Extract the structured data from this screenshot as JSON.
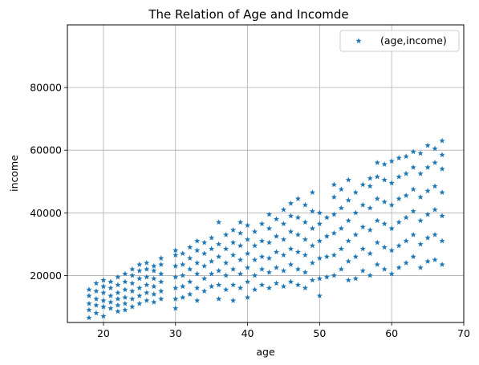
{
  "chart_data": {
    "type": "scatter",
    "title": "The Relation of Age and Incomde",
    "xlabel": "age",
    "ylabel": "income",
    "xlim": [
      15,
      70
    ],
    "ylim": [
      5000,
      100000
    ],
    "xticks": [
      20,
      30,
      40,
      50,
      60,
      70
    ],
    "yticks": [
      20000,
      40000,
      60000,
      80000
    ],
    "grid": true,
    "legend_position": "top-right",
    "marker": "star",
    "color": "#1f77b4",
    "series": [
      {
        "name": "(age,income)",
        "points": [
          [
            18,
            6500
          ],
          [
            18,
            9000
          ],
          [
            18,
            11000
          ],
          [
            18,
            13500
          ],
          [
            18,
            15500
          ],
          [
            19,
            8000
          ],
          [
            19,
            10500
          ],
          [
            19,
            12500
          ],
          [
            19,
            15000
          ],
          [
            19,
            17500
          ],
          [
            20,
            7000
          ],
          [
            20,
            10000
          ],
          [
            20,
            12000
          ],
          [
            20,
            14500
          ],
          [
            20,
            16500
          ],
          [
            20,
            18500
          ],
          [
            21,
            9500
          ],
          [
            21,
            11500
          ],
          [
            21,
            13500
          ],
          [
            21,
            16000
          ],
          [
            21,
            18000
          ],
          [
            22,
            8500
          ],
          [
            22,
            10500
          ],
          [
            22,
            12500
          ],
          [
            22,
            14500
          ],
          [
            22,
            17000
          ],
          [
            22,
            19500
          ],
          [
            23,
            9000
          ],
          [
            23,
            11000
          ],
          [
            23,
            13000
          ],
          [
            23,
            15500
          ],
          [
            23,
            18000
          ],
          [
            23,
            20500
          ],
          [
            24,
            10000
          ],
          [
            24,
            12500
          ],
          [
            24,
            15000
          ],
          [
            24,
            17500
          ],
          [
            24,
            20000
          ],
          [
            24,
            22000
          ],
          [
            25,
            11000
          ],
          [
            25,
            13500
          ],
          [
            25,
            16000
          ],
          [
            25,
            19000
          ],
          [
            25,
            21500
          ],
          [
            25,
            23500
          ],
          [
            26,
            12000
          ],
          [
            26,
            14500
          ],
          [
            26,
            17000
          ],
          [
            26,
            19500
          ],
          [
            26,
            22000
          ],
          [
            26,
            24000
          ],
          [
            27,
            11500
          ],
          [
            27,
            14000
          ],
          [
            27,
            16500
          ],
          [
            27,
            19000
          ],
          [
            27,
            21500
          ],
          [
            27,
            23000
          ],
          [
            28,
            12500
          ],
          [
            28,
            15000
          ],
          [
            28,
            18000
          ],
          [
            28,
            20500
          ],
          [
            28,
            23500
          ],
          [
            28,
            25500
          ],
          [
            30,
            9500
          ],
          [
            30,
            12500
          ],
          [
            30,
            16000
          ],
          [
            30,
            19500
          ],
          [
            30,
            23000
          ],
          [
            30,
            26500
          ],
          [
            30,
            28000
          ],
          [
            31,
            13000
          ],
          [
            31,
            16500
          ],
          [
            31,
            20000
          ],
          [
            31,
            23500
          ],
          [
            31,
            27000
          ],
          [
            32,
            14000
          ],
          [
            32,
            18000
          ],
          [
            32,
            22000
          ],
          [
            32,
            25500
          ],
          [
            32,
            29000
          ],
          [
            33,
            12000
          ],
          [
            33,
            16000
          ],
          [
            33,
            20500
          ],
          [
            33,
            24000
          ],
          [
            33,
            28000
          ],
          [
            33,
            31000
          ],
          [
            34,
            15000
          ],
          [
            34,
            19000
          ],
          [
            34,
            23000
          ],
          [
            34,
            27000
          ],
          [
            34,
            30500
          ],
          [
            35,
            16500
          ],
          [
            35,
            20500
          ],
          [
            35,
            24500
          ],
          [
            35,
            28500
          ],
          [
            35,
            32000
          ],
          [
            36,
            12500
          ],
          [
            36,
            17000
          ],
          [
            36,
            21500
          ],
          [
            36,
            26000
          ],
          [
            36,
            30000
          ],
          [
            36,
            37000
          ],
          [
            37,
            15500
          ],
          [
            37,
            20000
          ],
          [
            37,
            24000
          ],
          [
            37,
            28500
          ],
          [
            37,
            33000
          ],
          [
            38,
            12000
          ],
          [
            38,
            17000
          ],
          [
            38,
            22000
          ],
          [
            38,
            26500
          ],
          [
            38,
            30500
          ],
          [
            38,
            34500
          ],
          [
            39,
            16000
          ],
          [
            39,
            20500
          ],
          [
            39,
            25000
          ],
          [
            39,
            29500
          ],
          [
            39,
            33500
          ],
          [
            39,
            37000
          ],
          [
            40,
            13000
          ],
          [
            40,
            18000
          ],
          [
            40,
            22500
          ],
          [
            40,
            27000
          ],
          [
            40,
            31500
          ],
          [
            40,
            36000
          ],
          [
            41,
            15500
          ],
          [
            41,
            20000
          ],
          [
            41,
            25000
          ],
          [
            41,
            29500
          ],
          [
            41,
            34000
          ],
          [
            42,
            17000
          ],
          [
            42,
            22000
          ],
          [
            42,
            26000
          ],
          [
            42,
            31000
          ],
          [
            42,
            36500
          ],
          [
            43,
            16000
          ],
          [
            43,
            21000
          ],
          [
            43,
            25500
          ],
          [
            43,
            30500
          ],
          [
            43,
            35000
          ],
          [
            43,
            39500
          ],
          [
            44,
            17500
          ],
          [
            44,
            22500
          ],
          [
            44,
            27500
          ],
          [
            44,
            32500
          ],
          [
            44,
            38000
          ],
          [
            45,
            16500
          ],
          [
            45,
            21500
          ],
          [
            45,
            26500
          ],
          [
            45,
            31500
          ],
          [
            45,
            36500
          ],
          [
            45,
            41000
          ],
          [
            46,
            18000
          ],
          [
            46,
            23500
          ],
          [
            46,
            28500
          ],
          [
            46,
            34000
          ],
          [
            46,
            39000
          ],
          [
            46,
            43000
          ],
          [
            47,
            17000
          ],
          [
            47,
            22000
          ],
          [
            47,
            27500
          ],
          [
            47,
            33000
          ],
          [
            47,
            38500
          ],
          [
            47,
            44500
          ],
          [
            48,
            16000
          ],
          [
            48,
            21000
          ],
          [
            48,
            26500
          ],
          [
            48,
            31500
          ],
          [
            48,
            37000
          ],
          [
            48,
            42500
          ],
          [
            49,
            18500
          ],
          [
            49,
            24000
          ],
          [
            49,
            29500
          ],
          [
            49,
            35000
          ],
          [
            49,
            40500
          ],
          [
            49,
            46500
          ],
          [
            50,
            13500
          ],
          [
            50,
            19000
          ],
          [
            50,
            25500
          ],
          [
            50,
            31000
          ],
          [
            50,
            36500
          ],
          [
            50,
            40000
          ],
          [
            51,
            19500
          ],
          [
            51,
            26000
          ],
          [
            51,
            32500
          ],
          [
            51,
            38500
          ],
          [
            52,
            20000
          ],
          [
            52,
            26500
          ],
          [
            52,
            33500
          ],
          [
            52,
            39500
          ],
          [
            52,
            45000
          ],
          [
            52,
            49000
          ],
          [
            53,
            22000
          ],
          [
            53,
            28500
          ],
          [
            53,
            35000
          ],
          [
            53,
            41500
          ],
          [
            53,
            47500
          ],
          [
            54,
            18500
          ],
          [
            54,
            24500
          ],
          [
            54,
            31000
          ],
          [
            54,
            37500
          ],
          [
            54,
            44000
          ],
          [
            54,
            50500
          ],
          [
            55,
            19000
          ],
          [
            55,
            26000
          ],
          [
            55,
            33000
          ],
          [
            55,
            40000
          ],
          [
            55,
            46500
          ],
          [
            56,
            21500
          ],
          [
            56,
            28500
          ],
          [
            56,
            35500
          ],
          [
            56,
            42500
          ],
          [
            56,
            49000
          ],
          [
            57,
            20000
          ],
          [
            57,
            27000
          ],
          [
            57,
            34500
          ],
          [
            57,
            41500
          ],
          [
            57,
            48500
          ],
          [
            57,
            51000
          ],
          [
            58,
            23500
          ],
          [
            58,
            30500
          ],
          [
            58,
            37500
          ],
          [
            58,
            44500
          ],
          [
            58,
            51500
          ],
          [
            58,
            56000
          ],
          [
            59,
            22000
          ],
          [
            59,
            29000
          ],
          [
            59,
            36500
          ],
          [
            59,
            43500
          ],
          [
            59,
            50500
          ],
          [
            59,
            55500
          ],
          [
            60,
            20500
          ],
          [
            60,
            28000
          ],
          [
            60,
            35000
          ],
          [
            60,
            42500
          ],
          [
            60,
            49500
          ],
          [
            60,
            56500
          ],
          [
            61,
            22500
          ],
          [
            61,
            29500
          ],
          [
            61,
            37000
          ],
          [
            61,
            44500
          ],
          [
            61,
            51500
          ],
          [
            61,
            57500
          ],
          [
            62,
            24000
          ],
          [
            62,
            31000
          ],
          [
            62,
            38500
          ],
          [
            62,
            45500
          ],
          [
            62,
            52500
          ],
          [
            62,
            58000
          ],
          [
            63,
            26000
          ],
          [
            63,
            33000
          ],
          [
            63,
            40500
          ],
          [
            63,
            47500
          ],
          [
            63,
            54500
          ],
          [
            63,
            59500
          ],
          [
            64,
            22500
          ],
          [
            64,
            30000
          ],
          [
            64,
            37500
          ],
          [
            64,
            45000
          ],
          [
            64,
            52500
          ],
          [
            64,
            59000
          ],
          [
            65,
            24500
          ],
          [
            65,
            32000
          ],
          [
            65,
            39500
          ],
          [
            65,
            47000
          ],
          [
            65,
            54500
          ],
          [
            65,
            61500
          ],
          [
            66,
            25000
          ],
          [
            66,
            33000
          ],
          [
            66,
            41000
          ],
          [
            66,
            48500
          ],
          [
            66,
            56000
          ],
          [
            66,
            60500
          ],
          [
            67,
            23500
          ],
          [
            67,
            31000
          ],
          [
            67,
            39000
          ],
          [
            67,
            46500
          ],
          [
            67,
            54000
          ],
          [
            67,
            58500
          ],
          [
            67,
            63000
          ]
        ]
      }
    ]
  }
}
